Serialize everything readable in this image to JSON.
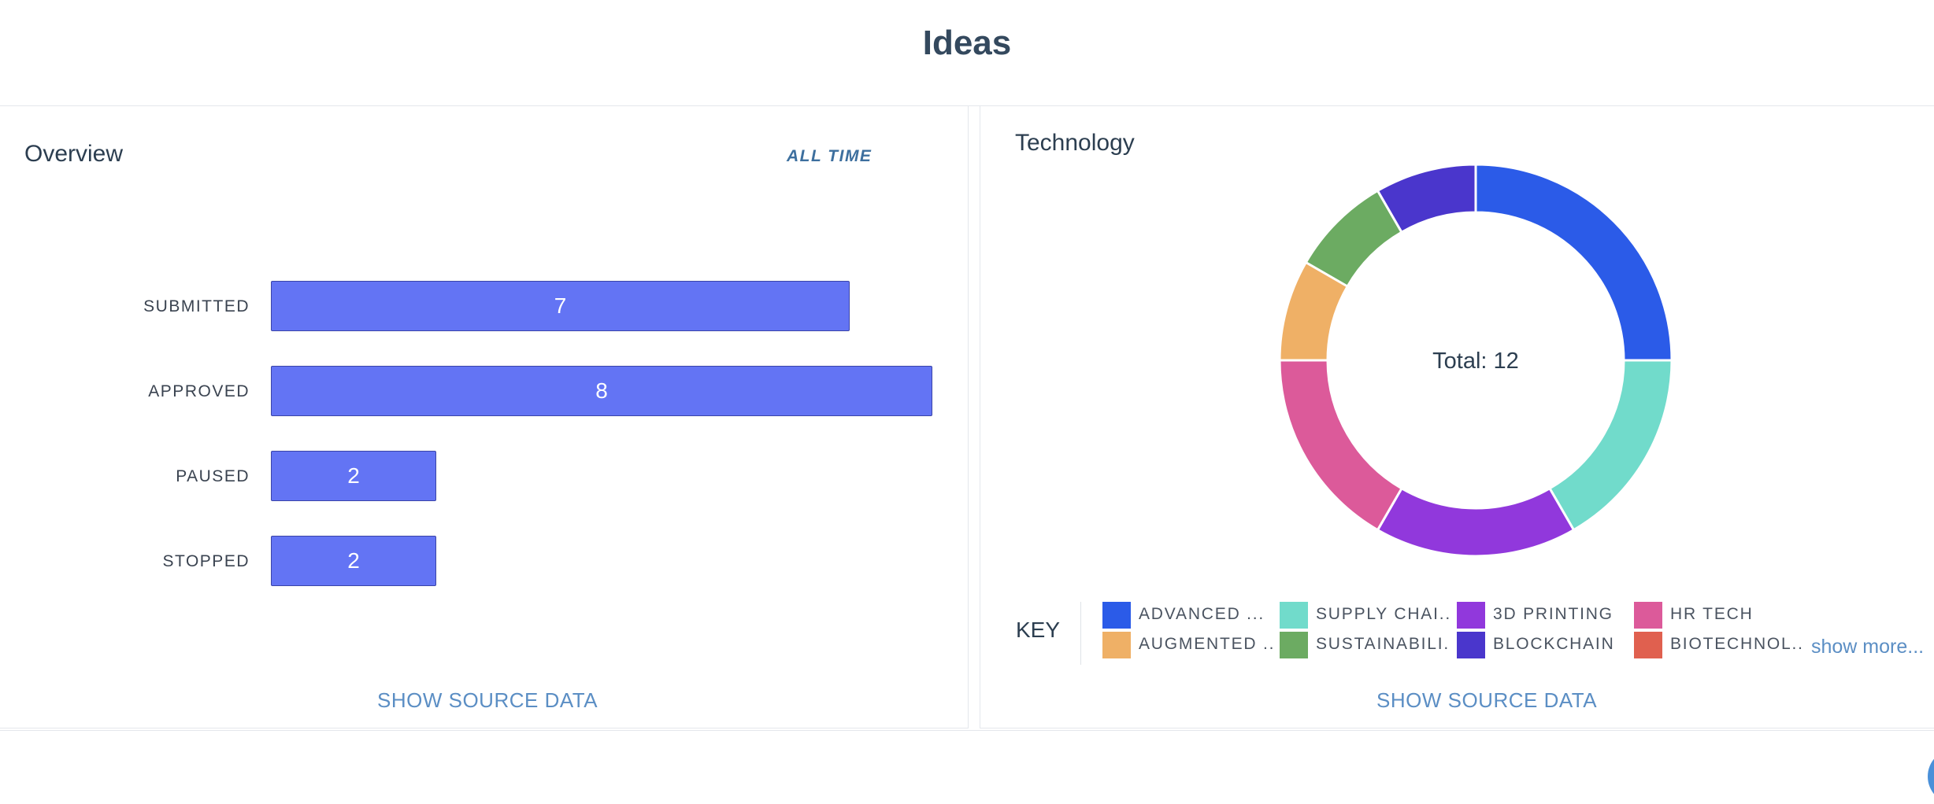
{
  "page": {
    "title": "Ideas"
  },
  "overview": {
    "title": "Overview",
    "filter": "ALL TIME",
    "source_link": "SHOW SOURCE DATA"
  },
  "technology": {
    "title": "Technology",
    "key_label": "KEY",
    "show_more": "show more...",
    "source_link": "SHOW SOURCE DATA",
    "legend": [
      {
        "label": "ADVANCED ...",
        "color": "#2b5be8"
      },
      {
        "label": "SUPPLY CHAI...",
        "color": "#71dbcb"
      },
      {
        "label": "3D PRINTING",
        "color": "#9138dc"
      },
      {
        "label": "HR TECH",
        "color": "#dc5a9a"
      },
      {
        "label": "AUGMENTED ...",
        "color": "#efb066"
      },
      {
        "label": "SUSTAINABILI...",
        "color": "#6cab62"
      },
      {
        "label": "BLOCKCHAIN",
        "color": "#4a36cc"
      },
      {
        "label": "BIOTECHNOL...",
        "color": "#e0604f"
      }
    ]
  },
  "chart_data": [
    {
      "type": "bar",
      "orientation": "horizontal",
      "categories": [
        "SUBMITTED",
        "APPROVED",
        "PAUSED",
        "STOPPED"
      ],
      "values": [
        7,
        8,
        2,
        2
      ],
      "data_labels": [
        "7",
        "8",
        "2",
        "2"
      ],
      "color": "#6374f4"
    },
    {
      "type": "pie",
      "donut": true,
      "center_label": "Total: 12",
      "categories": [
        "ADVANCED ...",
        "SUPPLY CHAI...",
        "3D PRINTING",
        "HR TECH",
        "AUGMENTED ...",
        "SUSTAINABILI...",
        "BLOCKCHAIN"
      ],
      "values": [
        3,
        2,
        2,
        2,
        1,
        1,
        1
      ],
      "colors": [
        "#2b5be8",
        "#71dbcb",
        "#9138dc",
        "#dc5a9a",
        "#efb066",
        "#6cab62",
        "#4a36cc"
      ]
    }
  ]
}
